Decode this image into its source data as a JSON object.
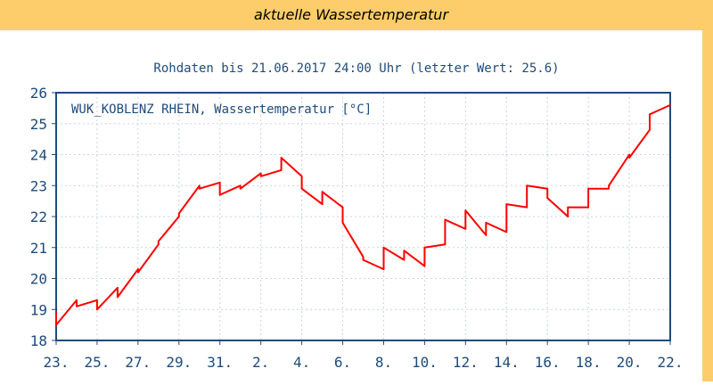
{
  "page": {
    "title": "aktuelle Wassertemperatur"
  },
  "colors": {
    "header_bg": "#fccd6a",
    "axis": "#1f4b7a",
    "grid": "#c9d3e0",
    "line": "#ff0000",
    "text": "#1f4b7a"
  },
  "chart_data": {
    "type": "line",
    "title": "Rohdaten bis 21.06.2017 24:00 Uhr (letzter Wert: 25.6)",
    "legend": "WUK_KOBLENZ RHEIN, Wassertemperatur [°C]",
    "legend_position": "top-left",
    "grid": true,
    "xlabel": "",
    "ylabel": "",
    "ylim": [
      18,
      26
    ],
    "xlim": [
      "2017-05-23",
      "2017-06-22"
    ],
    "x_ticks": [
      "23.",
      "25.",
      "27.",
      "29.",
      "31.",
      "2.",
      "4.",
      "6.",
      "8.",
      "10.",
      "12.",
      "14.",
      "16.",
      "18.",
      "20.",
      "22."
    ],
    "y_ticks": [
      18,
      19,
      20,
      21,
      22,
      23,
      24,
      25,
      26
    ],
    "series": [
      {
        "name": "WUK_KOBLENZ RHEIN, Wassertemperatur [°C]",
        "x": [
          "2017-05-23",
          "2017-05-23",
          "2017-05-24",
          "2017-05-24",
          "2017-05-25",
          "2017-05-25",
          "2017-05-26",
          "2017-05-26",
          "2017-05-27",
          "2017-05-27",
          "2017-05-28",
          "2017-05-28",
          "2017-05-29",
          "2017-05-29",
          "2017-05-30",
          "2017-05-30",
          "2017-05-31",
          "2017-05-31",
          "2017-06-01",
          "2017-06-01",
          "2017-06-02",
          "2017-06-02",
          "2017-06-03",
          "2017-06-03",
          "2017-06-04",
          "2017-06-04",
          "2017-06-05",
          "2017-06-05",
          "2017-06-06",
          "2017-06-06",
          "2017-06-07",
          "2017-06-07",
          "2017-06-08",
          "2017-06-08",
          "2017-06-09",
          "2017-06-09",
          "2017-06-10",
          "2017-06-10",
          "2017-06-11",
          "2017-06-11",
          "2017-06-12",
          "2017-06-12",
          "2017-06-13",
          "2017-06-13",
          "2017-06-14",
          "2017-06-14",
          "2017-06-15",
          "2017-06-15",
          "2017-06-16",
          "2017-06-16",
          "2017-06-17",
          "2017-06-17",
          "2017-06-18",
          "2017-06-18",
          "2017-06-19",
          "2017-06-19",
          "2017-06-20",
          "2017-06-20",
          "2017-06-21",
          "2017-06-21",
          "2017-06-22"
        ],
        "values": [
          18.9,
          18.5,
          19.3,
          19.1,
          19.3,
          19.0,
          19.7,
          19.4,
          20.3,
          20.2,
          21.1,
          21.2,
          22.0,
          22.1,
          23.0,
          22.9,
          23.1,
          22.7,
          23.0,
          22.9,
          23.4,
          23.3,
          23.5,
          23.9,
          23.3,
          22.9,
          22.4,
          22.8,
          22.3,
          21.8,
          20.7,
          20.6,
          20.3,
          21.0,
          20.6,
          20.9,
          20.4,
          21.0,
          21.1,
          21.9,
          21.6,
          22.2,
          21.4,
          21.8,
          21.5,
          22.4,
          22.3,
          23.0,
          22.9,
          22.6,
          22.0,
          22.3,
          22.3,
          22.9,
          22.9,
          23.0,
          24.0,
          23.9,
          24.8,
          25.3,
          25.6
        ]
      }
    ]
  }
}
